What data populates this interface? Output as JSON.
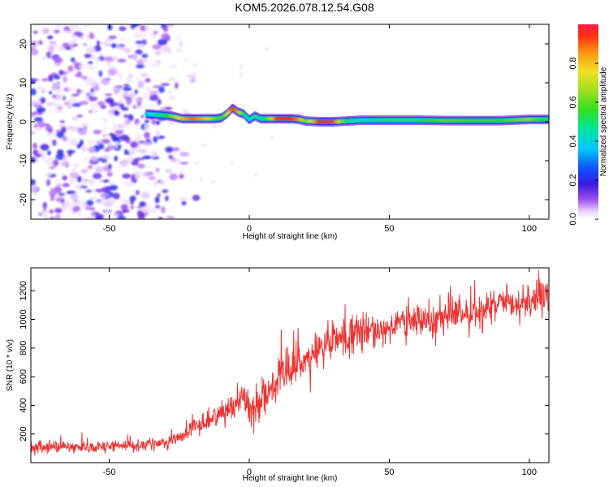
{
  "title": "KOM5.2026.078.12.54.G08",
  "chart_data": [
    {
      "type": "heatmap",
      "name": "spectrogram",
      "xlabel": "Height of straight line (km)",
      "ylabel": "Frequency (Hz)",
      "xlim": [
        -78,
        107
      ],
      "ylim": [
        -25,
        25
      ],
      "xticks": [
        -50,
        0,
        50,
        100
      ],
      "yticks": [
        -20,
        -10,
        0,
        10,
        20
      ],
      "colorbar": {
        "label": "Normalized spectral amplitude",
        "range": [
          0,
          1
        ],
        "ticks": [
          0.0,
          0.2,
          0.4,
          0.6,
          0.8
        ],
        "tick_labels": [
          "0.0",
          "0.2",
          "0.4",
          "0.6",
          "0.8"
        ]
      },
      "noise_region_height_km": [
        -78,
        -25
      ],
      "signal_track": {
        "height_km": [
          -37,
          -33,
          -28,
          -24,
          -20,
          -16,
          -12,
          -10,
          -8,
          -6,
          -4,
          -2,
          0,
          2,
          4,
          6,
          10,
          15,
          18,
          20,
          25,
          30,
          35,
          40,
          50,
          60,
          70,
          80,
          90,
          100,
          107
        ],
        "frequency_hz": [
          2.0,
          1.8,
          1.5,
          0.8,
          0.8,
          0.8,
          0.8,
          1.0,
          2.0,
          3.5,
          2.5,
          2.0,
          0.5,
          1.5,
          0.8,
          0.8,
          0.8,
          0.8,
          0.6,
          0.2,
          0.0,
          0.0,
          0.2,
          0.4,
          0.4,
          0.4,
          0.3,
          0.3,
          0.3,
          0.6,
          0.6
        ],
        "peak_amplitude": [
          0.35,
          0.45,
          0.6,
          0.8,
          0.9,
          0.8,
          0.6,
          0.5,
          0.7,
          0.95,
          0.85,
          0.5,
          0.4,
          0.5,
          0.45,
          0.55,
          0.95,
          0.95,
          0.85,
          0.6,
          0.95,
          0.95,
          0.5,
          0.45,
          0.5,
          0.5,
          0.6,
          0.55,
          0.55,
          0.65,
          0.5
        ]
      }
    },
    {
      "type": "line",
      "name": "snr",
      "xlabel": "Height of straight line (km)",
      "ylabel": "SNR (10 * v/v)",
      "xlim": [
        -78,
        107
      ],
      "ylim": [
        0,
        1360
      ],
      "xticks": [
        -50,
        0,
        50,
        100
      ],
      "yticks": [
        200,
        400,
        600,
        800,
        1000,
        1200
      ],
      "color": "#ee3333",
      "trend": {
        "x": [
          -78,
          -60,
          -40,
          -30,
          -25,
          -20,
          -15,
          -10,
          -5,
          -2,
          0,
          2,
          5,
          10,
          15,
          20,
          30,
          40,
          50,
          60,
          70,
          80,
          90,
          100,
          107
        ],
        "y": [
          110,
          110,
          120,
          140,
          180,
          240,
          290,
          350,
          420,
          460,
          380,
          370,
          470,
          560,
          640,
          720,
          850,
          900,
          950,
          990,
          1020,
          1050,
          1090,
          1130,
          1150
        ]
      },
      "noise_amplitude": {
        "x": [
          -78,
          -30,
          -10,
          0,
          20,
          107
        ],
        "y": [
          60,
          60,
          120,
          180,
          200,
          170
        ]
      },
      "samples": 1300
    }
  ]
}
